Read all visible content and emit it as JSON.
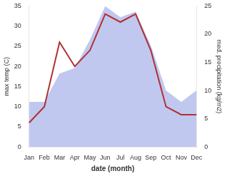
{
  "chart_data": {
    "type": "line",
    "xlabel": "date (month)",
    "ylabel": "max temp (C)",
    "y2label": "med. precipitation (kg/m2)",
    "categories": [
      "Jan",
      "Feb",
      "Mar",
      "Apr",
      "May",
      "Jun",
      "Jul",
      "Aug",
      "Sep",
      "Oct",
      "Nov",
      "Dec"
    ],
    "series": [
      {
        "type": "line",
        "color": "#b03030",
        "values": [
          6,
          10,
          26,
          20,
          24,
          33,
          31,
          33,
          24,
          10,
          8,
          8
        ]
      },
      {
        "type": "area",
        "axis": "y2",
        "color": "#c0c8f0",
        "values": [
          8,
          8,
          13,
          14,
          19,
          25,
          23,
          24,
          18,
          10,
          8,
          10
        ]
      }
    ],
    "ylim": [
      0,
      35
    ],
    "yticks": [
      0,
      5,
      10,
      15,
      20,
      25,
      30,
      35
    ],
    "y2lim": [
      0,
      25
    ],
    "y2ticks": [
      0,
      5,
      10,
      15,
      20,
      25
    ],
    "grid": false
  }
}
